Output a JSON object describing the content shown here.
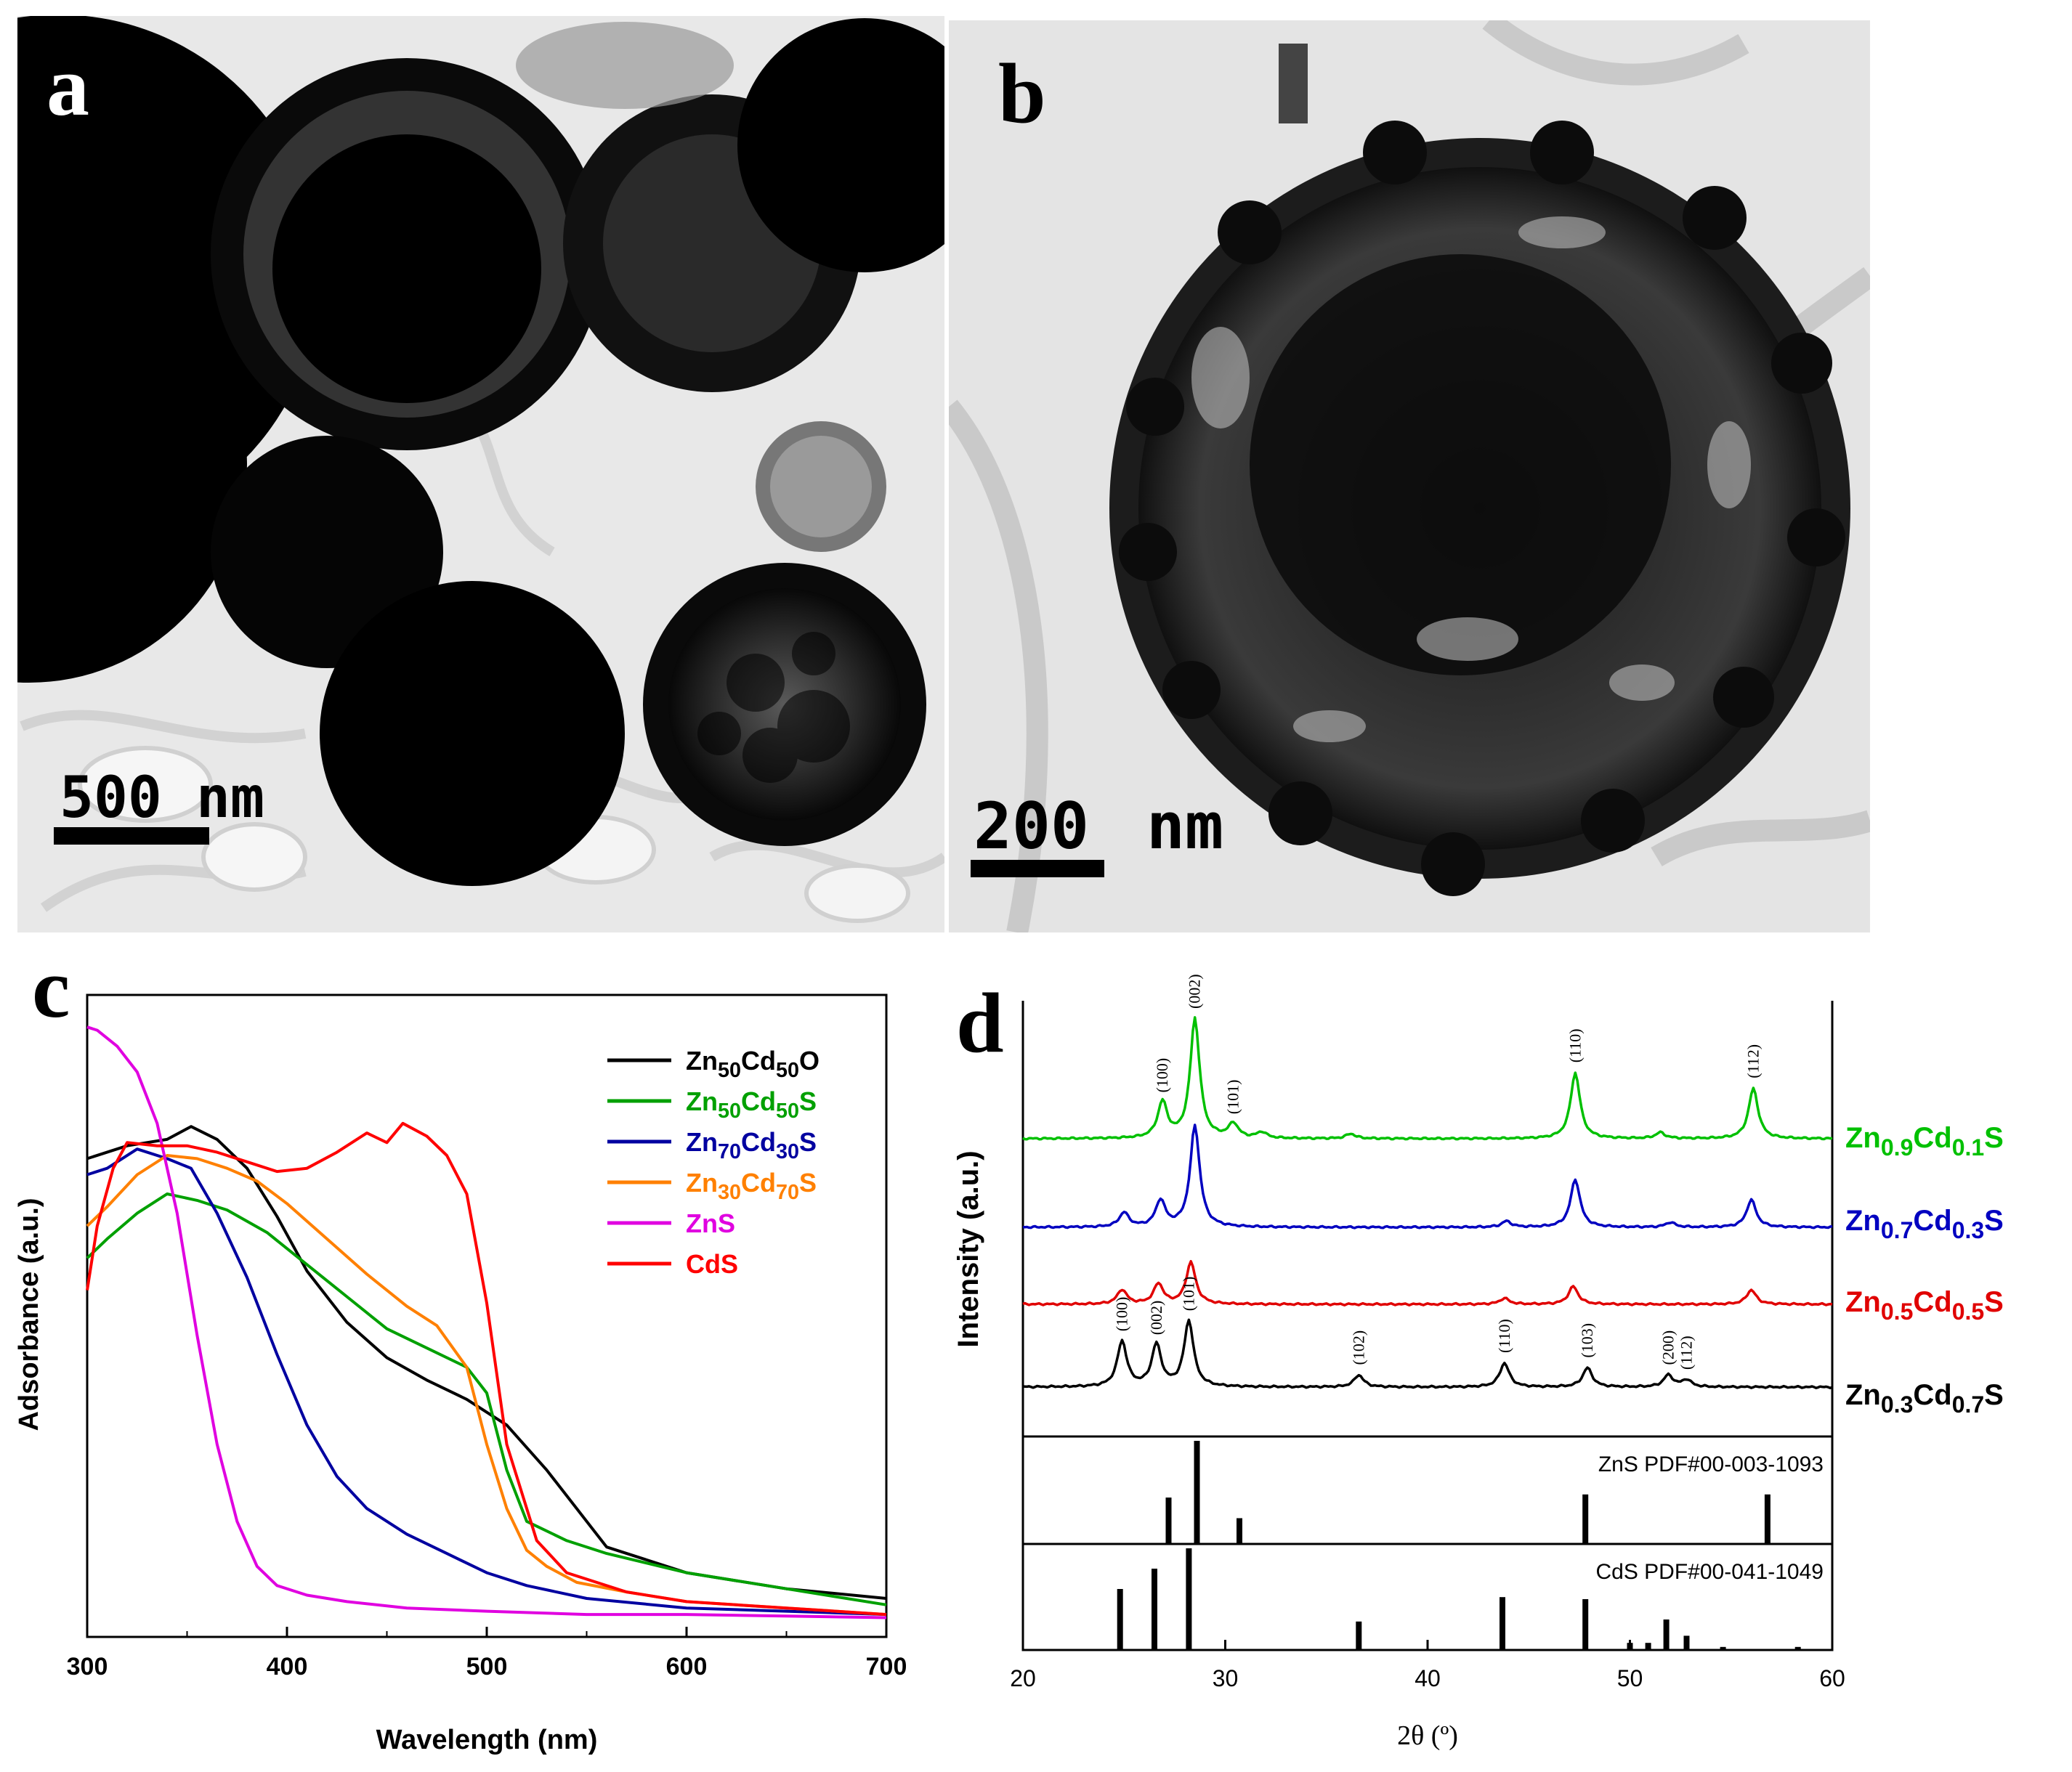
{
  "panels": {
    "a": {
      "label": "a",
      "scalebar_value": "500",
      "scalebar_unit": "nm"
    },
    "b": {
      "label": "b",
      "scalebar_value": "200",
      "scalebar_unit": "nm"
    },
    "c": {
      "label": "c"
    },
    "d": {
      "label": "d"
    }
  },
  "chart_data": [
    {
      "panel": "c",
      "type": "line",
      "title": "",
      "xlabel": "Wavelength (nm)",
      "ylabel": "Adsorbance (a.u.)",
      "xlim": [
        300,
        700
      ],
      "ylim": [
        0,
        1
      ],
      "xticks": [
        "300",
        "400",
        "500",
        "600",
        "700"
      ],
      "legend_position": "top-right",
      "series": [
        {
          "name": "Zn50Cd50O",
          "legend": [
            "Zn",
            "50",
            "Cd",
            "50",
            "O"
          ],
          "color": "#000000",
          "x": [
            300,
            320,
            340,
            352,
            365,
            380,
            395,
            410,
            430,
            450,
            470,
            490,
            510,
            530,
            560,
            600,
            650,
            700
          ],
          "y": [
            0.745,
            0.765,
            0.775,
            0.795,
            0.775,
            0.73,
            0.655,
            0.57,
            0.49,
            0.435,
            0.4,
            0.37,
            0.33,
            0.26,
            0.14,
            0.1,
            0.075,
            0.06
          ]
        },
        {
          "name": "Zn50Cd50S",
          "legend": [
            "Zn",
            "50",
            "Cd",
            "50",
            "S"
          ],
          "color": "#00a000",
          "x": [
            300,
            310,
            325,
            340,
            355,
            370,
            390,
            410,
            430,
            450,
            470,
            490,
            500,
            510,
            520,
            540,
            560,
            600,
            650,
            700
          ],
          "y": [
            0.59,
            0.62,
            0.66,
            0.69,
            0.68,
            0.665,
            0.63,
            0.58,
            0.53,
            0.48,
            0.45,
            0.42,
            0.38,
            0.26,
            0.18,
            0.15,
            0.13,
            0.1,
            0.075,
            0.05
          ]
        },
        {
          "name": "Zn70Cd30S",
          "legend": [
            "Zn",
            "70",
            "Cd",
            "30",
            "S"
          ],
          "color": "#0000a0",
          "x": [
            300,
            310,
            325,
            340,
            352,
            365,
            380,
            395,
            410,
            425,
            440,
            460,
            480,
            500,
            520,
            550,
            600,
            650,
            700
          ],
          "y": [
            0.72,
            0.73,
            0.76,
            0.745,
            0.73,
            0.66,
            0.56,
            0.44,
            0.33,
            0.25,
            0.2,
            0.16,
            0.13,
            0.1,
            0.08,
            0.06,
            0.045,
            0.04,
            0.035
          ]
        },
        {
          "name": "Zn30Cd70S",
          "legend": [
            "Zn",
            "30",
            "Cd",
            "70",
            "S"
          ],
          "color": "#ff8000",
          "x": [
            300,
            310,
            325,
            340,
            355,
            370,
            385,
            400,
            420,
            440,
            460,
            475,
            490,
            500,
            510,
            520,
            530,
            545,
            570,
            600,
            650,
            700
          ],
          "y": [
            0.64,
            0.67,
            0.72,
            0.75,
            0.745,
            0.73,
            0.71,
            0.675,
            0.62,
            0.565,
            0.515,
            0.485,
            0.42,
            0.3,
            0.2,
            0.135,
            0.11,
            0.085,
            0.07,
            0.055,
            0.045,
            0.035
          ]
        },
        {
          "name": "ZnS",
          "legend": [
            "ZnS"
          ],
          "color": "#e000e0",
          "x": [
            300,
            305,
            315,
            325,
            335,
            345,
            355,
            365,
            375,
            385,
            395,
            410,
            430,
            460,
            500,
            550,
            600,
            700
          ],
          "y": [
            0.95,
            0.945,
            0.92,
            0.88,
            0.8,
            0.66,
            0.47,
            0.3,
            0.18,
            0.11,
            0.08,
            0.065,
            0.055,
            0.045,
            0.04,
            0.035,
            0.035,
            0.03
          ]
        },
        {
          "name": "CdS",
          "legend": [
            "CdS"
          ],
          "color": "#ff0000",
          "x": [
            300,
            305,
            313,
            320,
            335,
            350,
            365,
            380,
            395,
            410,
            425,
            440,
            450,
            458,
            470,
            480,
            490,
            500,
            510,
            525,
            540,
            570,
            600,
            650,
            700
          ],
          "y": [
            0.54,
            0.64,
            0.73,
            0.77,
            0.765,
            0.765,
            0.755,
            0.74,
            0.725,
            0.73,
            0.755,
            0.785,
            0.77,
            0.8,
            0.78,
            0.75,
            0.69,
            0.52,
            0.3,
            0.15,
            0.1,
            0.07,
            0.055,
            0.045,
            0.035
          ]
        }
      ]
    },
    {
      "panel": "d",
      "type": "line",
      "title": "",
      "xlabel": "2θ (º)",
      "ylabel": "Intensity (a.u.)",
      "xlim": [
        20,
        60
      ],
      "xticks": [
        "20",
        "30",
        "40",
        "50",
        "60"
      ],
      "series": [
        {
          "name": "Zn0.9Cd0.1S",
          "label": [
            "Zn",
            "0.9",
            "Cd",
            "0.1",
            "S"
          ],
          "color": "#00c000",
          "peaks": [
            {
              "x": 26.9,
              "h": 0.3
            },
            {
              "x": 28.5,
              "h": 1.0
            },
            {
              "x": 30.4,
              "h": 0.12
            },
            {
              "x": 31.8,
              "h": 0.05
            },
            {
              "x": 36.2,
              "h": 0.04
            },
            {
              "x": 47.3,
              "h": 0.55
            },
            {
              "x": 51.5,
              "h": 0.05
            },
            {
              "x": 56.1,
              "h": 0.42
            }
          ],
          "peak_labels": [
            {
              "x": 26.9,
              "text": "(100)"
            },
            {
              "x": 28.5,
              "text": "(002)"
            },
            {
              "x": 30.4,
              "text": "(101)"
            },
            {
              "x": 47.3,
              "text": "(110)"
            },
            {
              "x": 56.1,
              "text": "(112)"
            }
          ]
        },
        {
          "name": "Zn0.7Cd0.3S",
          "label": [
            "Zn",
            "0.7",
            "Cd",
            "0.3",
            "S"
          ],
          "color": "#0000c0",
          "peaks": [
            {
              "x": 25.0,
              "h": 0.12
            },
            {
              "x": 26.8,
              "h": 0.22
            },
            {
              "x": 28.5,
              "h": 0.85
            },
            {
              "x": 43.9,
              "h": 0.05
            },
            {
              "x": 47.3,
              "h": 0.4
            },
            {
              "x": 52.0,
              "h": 0.04
            },
            {
              "x": 56.0,
              "h": 0.23
            }
          ],
          "peak_labels": []
        },
        {
          "name": "Zn0.5Cd0.5S",
          "label": [
            "Zn",
            "0.5",
            "Cd",
            "0.5",
            "S"
          ],
          "color": "#e00000",
          "peaks": [
            {
              "x": 24.9,
              "h": 0.12
            },
            {
              "x": 26.7,
              "h": 0.17
            },
            {
              "x": 28.3,
              "h": 0.35
            },
            {
              "x": 43.8,
              "h": 0.05
            },
            {
              "x": 47.2,
              "h": 0.15
            },
            {
              "x": 56.0,
              "h": 0.12
            }
          ],
          "peak_labels": []
        },
        {
          "name": "Zn0.3Cd0.7S",
          "label": [
            "Zn",
            "0.3",
            "Cd",
            "0.7",
            "S"
          ],
          "color": "#000000",
          "peaks": [
            {
              "x": 24.9,
              "h": 0.38
            },
            {
              "x": 26.6,
              "h": 0.35
            },
            {
              "x": 28.2,
              "h": 0.55
            },
            {
              "x": 36.6,
              "h": 0.1
            },
            {
              "x": 43.8,
              "h": 0.2
            },
            {
              "x": 47.9,
              "h": 0.16
            },
            {
              "x": 51.9,
              "h": 0.1
            },
            {
              "x": 52.8,
              "h": 0.06
            }
          ],
          "peak_labels": [
            {
              "x": 24.9,
              "text": "(100)"
            },
            {
              "x": 26.6,
              "text": "(002)"
            },
            {
              "x": 28.2,
              "text": "(101)"
            },
            {
              "x": 36.6,
              "text": "(102)"
            },
            {
              "x": 43.8,
              "text": "(110)"
            },
            {
              "x": 47.9,
              "text": "(103)"
            },
            {
              "x": 51.9,
              "text": "(200)"
            },
            {
              "x": 52.8,
              "text": "(112)"
            }
          ]
        }
      ],
      "references": [
        {
          "name": "ZnS PDF#00-003-1093",
          "lines": [
            {
              "x": 27.2,
              "h": 0.45
            },
            {
              "x": 28.6,
              "h": 1.0
            },
            {
              "x": 30.7,
              "h": 0.25
            },
            {
              "x": 47.8,
              "h": 0.48
            },
            {
              "x": 56.8,
              "h": 0.48
            }
          ]
        },
        {
          "name": "CdS PDF#00-041-1049",
          "lines": [
            {
              "x": 24.8,
              "h": 0.6
            },
            {
              "x": 26.5,
              "h": 0.8
            },
            {
              "x": 28.2,
              "h": 1.0
            },
            {
              "x": 36.6,
              "h": 0.28
            },
            {
              "x": 43.7,
              "h": 0.52
            },
            {
              "x": 47.8,
              "h": 0.5
            },
            {
              "x": 50.0,
              "h": 0.07
            },
            {
              "x": 50.9,
              "h": 0.07
            },
            {
              "x": 51.8,
              "h": 0.3
            },
            {
              "x": 52.8,
              "h": 0.14
            },
            {
              "x": 54.6,
              "h": 0.03
            },
            {
              "x": 58.3,
              "h": 0.03
            }
          ]
        }
      ]
    }
  ]
}
